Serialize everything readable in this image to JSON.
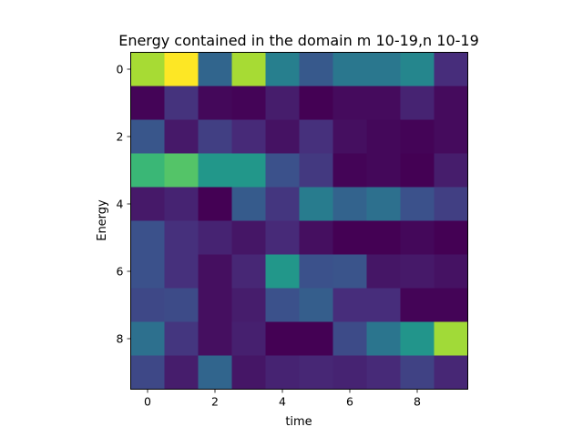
{
  "chart_data": {
    "type": "heatmap",
    "title": "Energy contained in the domain m 10-19,n 10-19",
    "xlabel": "time",
    "ylabel": "Energy",
    "x": [
      0,
      1,
      2,
      3,
      4,
      5,
      6,
      7,
      8,
      9
    ],
    "y": [
      0,
      1,
      2,
      3,
      4,
      5,
      6,
      7,
      8,
      9
    ],
    "xticks": [
      0,
      2,
      4,
      6,
      8
    ],
    "yticks": [
      0,
      2,
      4,
      6,
      8
    ],
    "xlim": [
      -0.5,
      9.5
    ],
    "ylim": [
      -0.5,
      9.5
    ],
    "y_inverted": true,
    "colormap": "viridis",
    "value_range": [
      0,
      1
    ],
    "values": [
      [
        0.87,
        1.0,
        0.33,
        0.87,
        0.43,
        0.28,
        0.4,
        0.4,
        0.46,
        0.13
      ],
      [
        0.01,
        0.15,
        0.02,
        0.01,
        0.08,
        0.0,
        0.03,
        0.03,
        0.1,
        0.03
      ],
      [
        0.27,
        0.07,
        0.19,
        0.12,
        0.05,
        0.14,
        0.04,
        0.02,
        0.01,
        0.03
      ],
      [
        0.67,
        0.73,
        0.53,
        0.53,
        0.25,
        0.17,
        0.01,
        0.02,
        0.0,
        0.08
      ],
      [
        0.07,
        0.1,
        0.0,
        0.29,
        0.16,
        0.42,
        0.32,
        0.37,
        0.25,
        0.19
      ],
      [
        0.25,
        0.14,
        0.1,
        0.06,
        0.12,
        0.04,
        0.0,
        0.0,
        0.02,
        0.0
      ],
      [
        0.25,
        0.14,
        0.04,
        0.11,
        0.53,
        0.25,
        0.26,
        0.06,
        0.07,
        0.05
      ],
      [
        0.22,
        0.23,
        0.04,
        0.08,
        0.25,
        0.3,
        0.13,
        0.13,
        0.01,
        0.01
      ],
      [
        0.37,
        0.16,
        0.04,
        0.09,
        0.0,
        0.0,
        0.23,
        0.39,
        0.52,
        0.86
      ],
      [
        0.22,
        0.08,
        0.33,
        0.06,
        0.1,
        0.11,
        0.1,
        0.12,
        0.2,
        0.11
      ]
    ]
  }
}
